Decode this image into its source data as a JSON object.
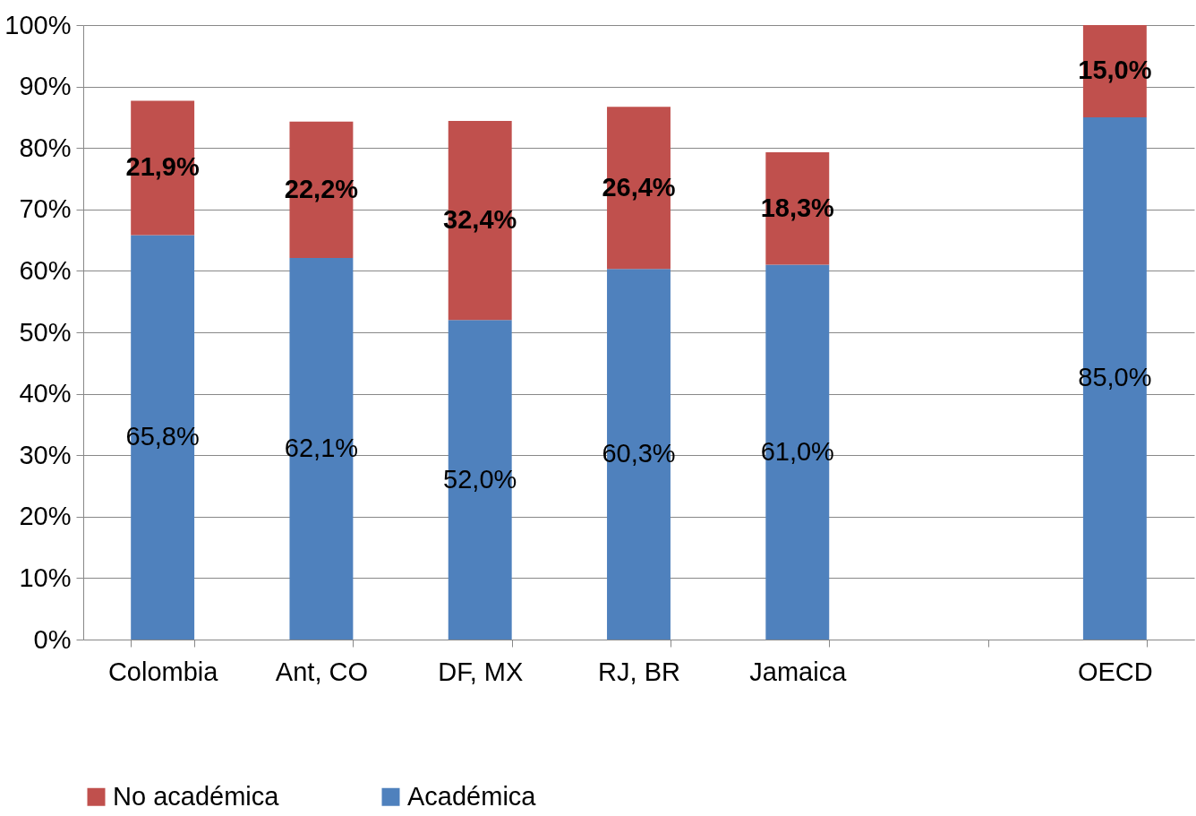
{
  "chart_data": {
    "type": "bar",
    "stacked": true,
    "categories": [
      "Colombia",
      "Ant, CO",
      "DF, MX",
      "RJ, BR",
      "Jamaica",
      null,
      "OECD"
    ],
    "series": [
      {
        "name": "Académica",
        "color": "#4f81bd",
        "values": [
          65.8,
          62.1,
          52.0,
          60.3,
          61.0,
          null,
          85.0
        ],
        "value_labels": [
          "65,8%",
          "62,1%",
          "52,0%",
          "60,3%",
          "61,0%",
          null,
          "85,0%"
        ]
      },
      {
        "name": "No académica",
        "color": "#c0504d",
        "values": [
          21.9,
          22.2,
          32.4,
          26.4,
          18.3,
          null,
          15.0
        ],
        "value_labels": [
          "21,9%",
          "22,2%",
          "32,4%",
          "26,4%",
          "18,3%",
          null,
          "15,0%"
        ]
      }
    ],
    "ylim": [
      0,
      100
    ],
    "yticks": [
      {
        "value": 0,
        "label": "0%"
      },
      {
        "value": 10,
        "label": "10%"
      },
      {
        "value": 20,
        "label": "20%"
      },
      {
        "value": 30,
        "label": "30%"
      },
      {
        "value": 40,
        "label": "40%"
      },
      {
        "value": 50,
        "label": "50%"
      },
      {
        "value": 60,
        "label": "60%"
      },
      {
        "value": 70,
        "label": "70%"
      },
      {
        "value": 80,
        "label": "80%"
      },
      {
        "value": 90,
        "label": "90%"
      },
      {
        "value": 100,
        "label": "100%"
      }
    ],
    "grid": "y",
    "legend": "bottom"
  }
}
